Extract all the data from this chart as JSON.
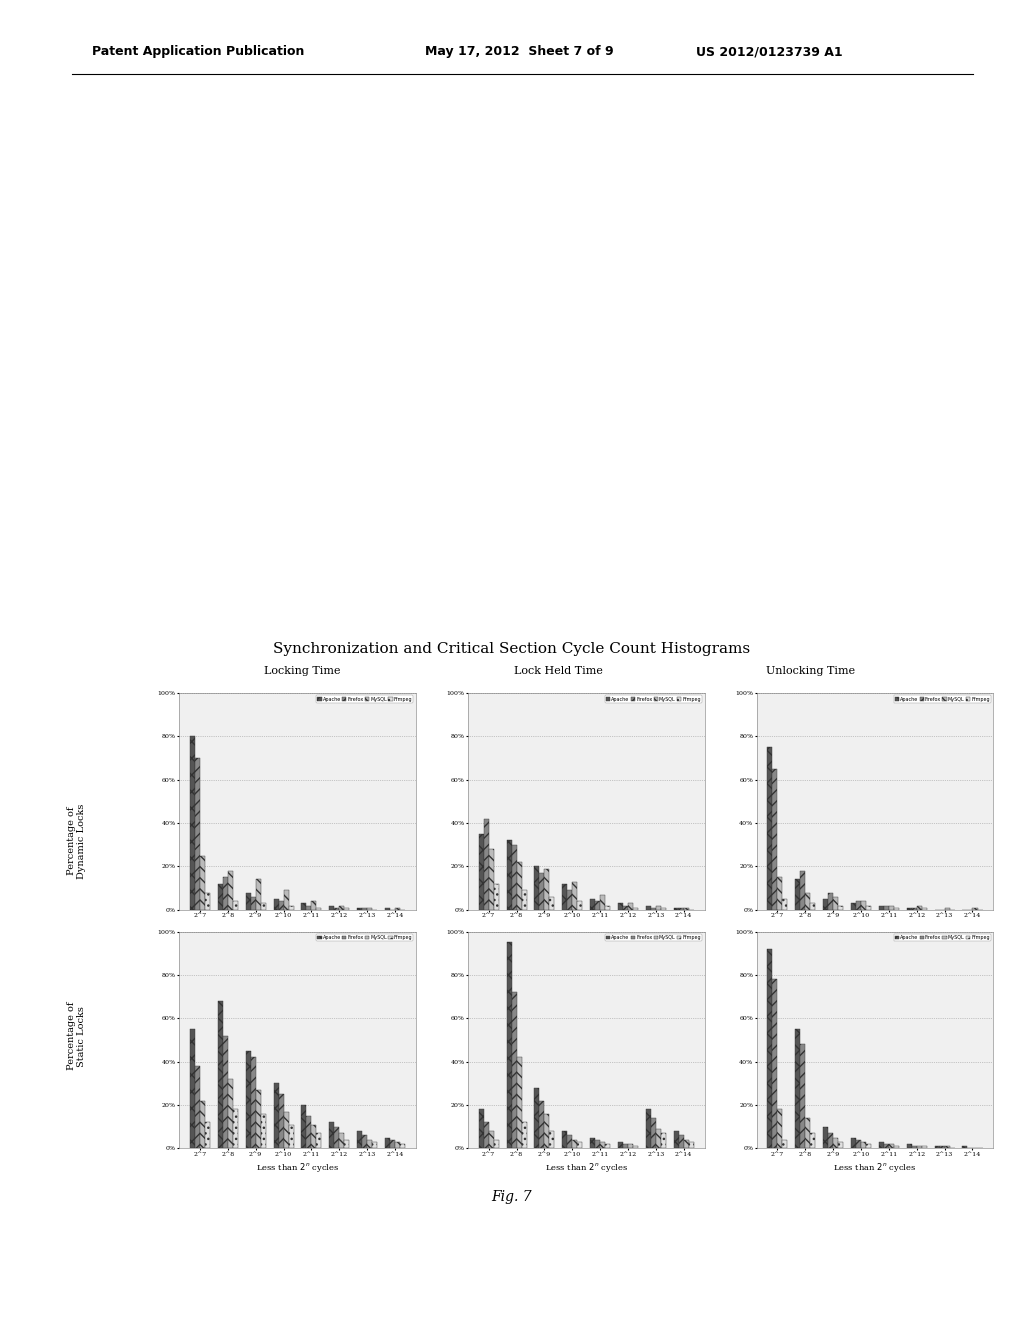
{
  "main_title": "Synchronization and Critical Section Cycle Count Histograms",
  "col_titles": [
    "Locking Time",
    "Lock Held Time",
    "Unlocking Time"
  ],
  "row_labels": [
    "Percentage of\nDynamic Locks",
    "Percentage of\nStatic Locks"
  ],
  "legend_labels": [
    "Apache",
    "Firefox",
    "MySQL",
    "Ffmpeg"
  ],
  "x_tick_labels": [
    "2^7",
    "2^8",
    "2^9",
    "2^10",
    "2^11",
    "2^12",
    "2^13",
    "2^14"
  ],
  "background_color": "#ffffff",
  "figure_bg": "#ffffff",
  "subplot_bg": "#f0f0f0",
  "grid_color": "#999999",
  "bar_width": 0.18,
  "subplots": {
    "dynamic_locking": {
      "apache": [
        80,
        12,
        8,
        5,
        3,
        2,
        1,
        1
      ],
      "firefox": [
        70,
        15,
        6,
        4,
        2,
        1,
        1,
        0
      ],
      "mysql": [
        25,
        18,
        14,
        9,
        4,
        2,
        1,
        1
      ],
      "ffmpeg": [
        8,
        4,
        3,
        2,
        1,
        1,
        0,
        0
      ]
    },
    "dynamic_lockheld": {
      "apache": [
        35,
        32,
        20,
        12,
        5,
        3,
        2,
        1
      ],
      "firefox": [
        42,
        30,
        17,
        9,
        4,
        2,
        1,
        1
      ],
      "mysql": [
        28,
        22,
        19,
        13,
        7,
        3,
        2,
        1
      ],
      "ffmpeg": [
        12,
        9,
        6,
        4,
        2,
        1,
        1,
        0
      ]
    },
    "dynamic_unlocking": {
      "apache": [
        75,
        14,
        5,
        3,
        2,
        1,
        0,
        0
      ],
      "firefox": [
        65,
        18,
        8,
        4,
        2,
        1,
        0,
        0
      ],
      "mysql": [
        15,
        8,
        6,
        4,
        2,
        2,
        1,
        1
      ],
      "ffmpeg": [
        5,
        3,
        2,
        2,
        1,
        1,
        0,
        0
      ]
    },
    "static_locking": {
      "apache": [
        55,
        68,
        45,
        30,
        20,
        12,
        8,
        5
      ],
      "firefox": [
        38,
        52,
        42,
        25,
        15,
        10,
        6,
        4
      ],
      "mysql": [
        22,
        32,
        27,
        17,
        11,
        7,
        4,
        3
      ],
      "ffmpeg": [
        12,
        18,
        16,
        11,
        7,
        4,
        3,
        2
      ]
    },
    "static_lockheld": {
      "apache": [
        18,
        95,
        28,
        8,
        5,
        3,
        18,
        8
      ],
      "firefox": [
        12,
        72,
        22,
        6,
        4,
        2,
        14,
        6
      ],
      "mysql": [
        8,
        42,
        16,
        4,
        3,
        2,
        9,
        4
      ],
      "ffmpeg": [
        4,
        12,
        8,
        3,
        2,
        1,
        7,
        3
      ]
    },
    "static_unlocking": {
      "apache": [
        92,
        55,
        10,
        5,
        3,
        2,
        1,
        1
      ],
      "firefox": [
        78,
        48,
        7,
        4,
        2,
        1,
        1,
        0
      ],
      "mysql": [
        18,
        14,
        5,
        3,
        2,
        1,
        1,
        0
      ],
      "ffmpeg": [
        4,
        7,
        3,
        2,
        1,
        1,
        0,
        0
      ]
    }
  },
  "ylim": [
    0,
    100
  ],
  "ytick_vals": [
    0,
    20,
    40,
    60,
    80,
    100
  ],
  "ytick_labels": [
    "0%",
    "20%",
    "40%",
    "60%",
    "80%",
    "100%"
  ],
  "header_left": "Patent Application Publication",
  "header_mid": "May 17, 2012  Sheet 7 of 9",
  "header_right": "US 2012/0123739 A1",
  "fig_label": "Fig. 7"
}
